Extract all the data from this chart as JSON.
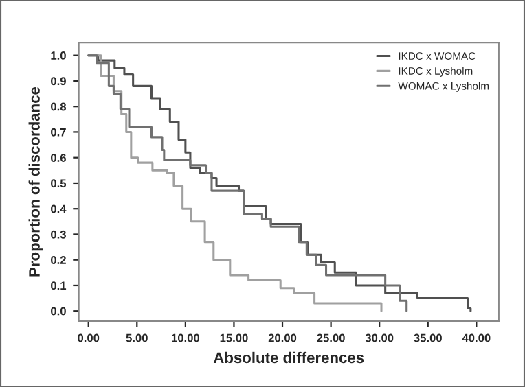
{
  "chart_data": {
    "type": "step",
    "xlabel": "Absolute differences",
    "ylabel": "Proportion of discordance",
    "xlim": [
      -1,
      42.3
    ],
    "ylim": [
      -0.04,
      1.05
    ],
    "xticks": [
      {
        "value": 0,
        "label": "0.00"
      },
      {
        "value": 5,
        "label": "5.00"
      },
      {
        "value": 10,
        "label": "10.00"
      },
      {
        "value": 15,
        "label": "15.00"
      },
      {
        "value": 20,
        "label": "20.00"
      },
      {
        "value": 25,
        "label": "25.00"
      },
      {
        "value": 30,
        "label": "30.00"
      },
      {
        "value": 35,
        "label": "35.00"
      },
      {
        "value": 40,
        "label": "40.00"
      }
    ],
    "yticks": [
      {
        "value": 0,
        "label": "0.0"
      },
      {
        "value": 0.1,
        "label": "0.1"
      },
      {
        "value": 0.2,
        "label": "0.2"
      },
      {
        "value": 0.3,
        "label": "0.3"
      },
      {
        "value": 0.4,
        "label": "0.4"
      },
      {
        "value": 0.5,
        "label": "0.5"
      },
      {
        "value": 0.6,
        "label": "0.6"
      },
      {
        "value": 0.7,
        "label": "0.7"
      },
      {
        "value": 0.8,
        "label": "0.8"
      },
      {
        "value": 0.9,
        "label": "0.9"
      },
      {
        "value": 1.0,
        "label": "1.0"
      }
    ],
    "grid": false,
    "legend": "top right",
    "marker": "none",
    "line_style": "solid",
    "series": [
      {
        "name": "IKDC x WOMAC",
        "color": "#505050",
        "x": [
          0,
          1.0,
          2.7,
          3.7,
          4.6,
          5.1,
          6.5,
          7.4,
          8.4,
          9.3,
          10.0,
          10.5,
          11.5,
          12.7,
          13.2,
          15.5,
          16.0,
          18.3,
          18.8,
          21.9,
          22.6,
          24.0,
          25.4,
          27.6,
          30.6,
          33.9,
          39.1,
          39.4
        ],
        "values": [
          1.0,
          0.98,
          0.95,
          0.925,
          0.88,
          0.88,
          0.83,
          0.79,
          0.74,
          0.67,
          0.62,
          0.56,
          0.54,
          0.52,
          0.49,
          0.47,
          0.41,
          0.36,
          0.34,
          0.27,
          0.22,
          0.19,
          0.15,
          0.1,
          0.07,
          0.05,
          0.01,
          0.0
        ]
      },
      {
        "name": "IKDC x Lysholm",
        "color": "#a0a0a0",
        "x": [
          0,
          1.3,
          2.6,
          3.4,
          3.9,
          4.4,
          5.1,
          6.6,
          8.1,
          8.8,
          9.7,
          10.6,
          12.0,
          12.9,
          14.6,
          16.5,
          19.8,
          21.2,
          23.3,
          30.2
        ],
        "values": [
          1.0,
          0.92,
          0.86,
          0.77,
          0.7,
          0.6,
          0.58,
          0.55,
          0.54,
          0.49,
          0.4,
          0.35,
          0.27,
          0.2,
          0.14,
          0.12,
          0.09,
          0.07,
          0.03,
          0.0
        ]
      },
      {
        "name": "WOMAC x Lysholm",
        "color": "#707070",
        "x": [
          0,
          0.85,
          2.1,
          2.6,
          3.3,
          4.2,
          6.5,
          7.6,
          7.8,
          10.5,
          12.1,
          12.7,
          16.0,
          17.9,
          18.8,
          21.7,
          22.5,
          23.5,
          24.5,
          30.6,
          32.1,
          32.8
        ],
        "values": [
          1.0,
          0.97,
          0.88,
          0.85,
          0.79,
          0.72,
          0.68,
          0.63,
          0.59,
          0.57,
          0.54,
          0.47,
          0.38,
          0.36,
          0.33,
          0.27,
          0.22,
          0.18,
          0.14,
          0.1,
          0.04,
          0.0
        ]
      }
    ]
  }
}
